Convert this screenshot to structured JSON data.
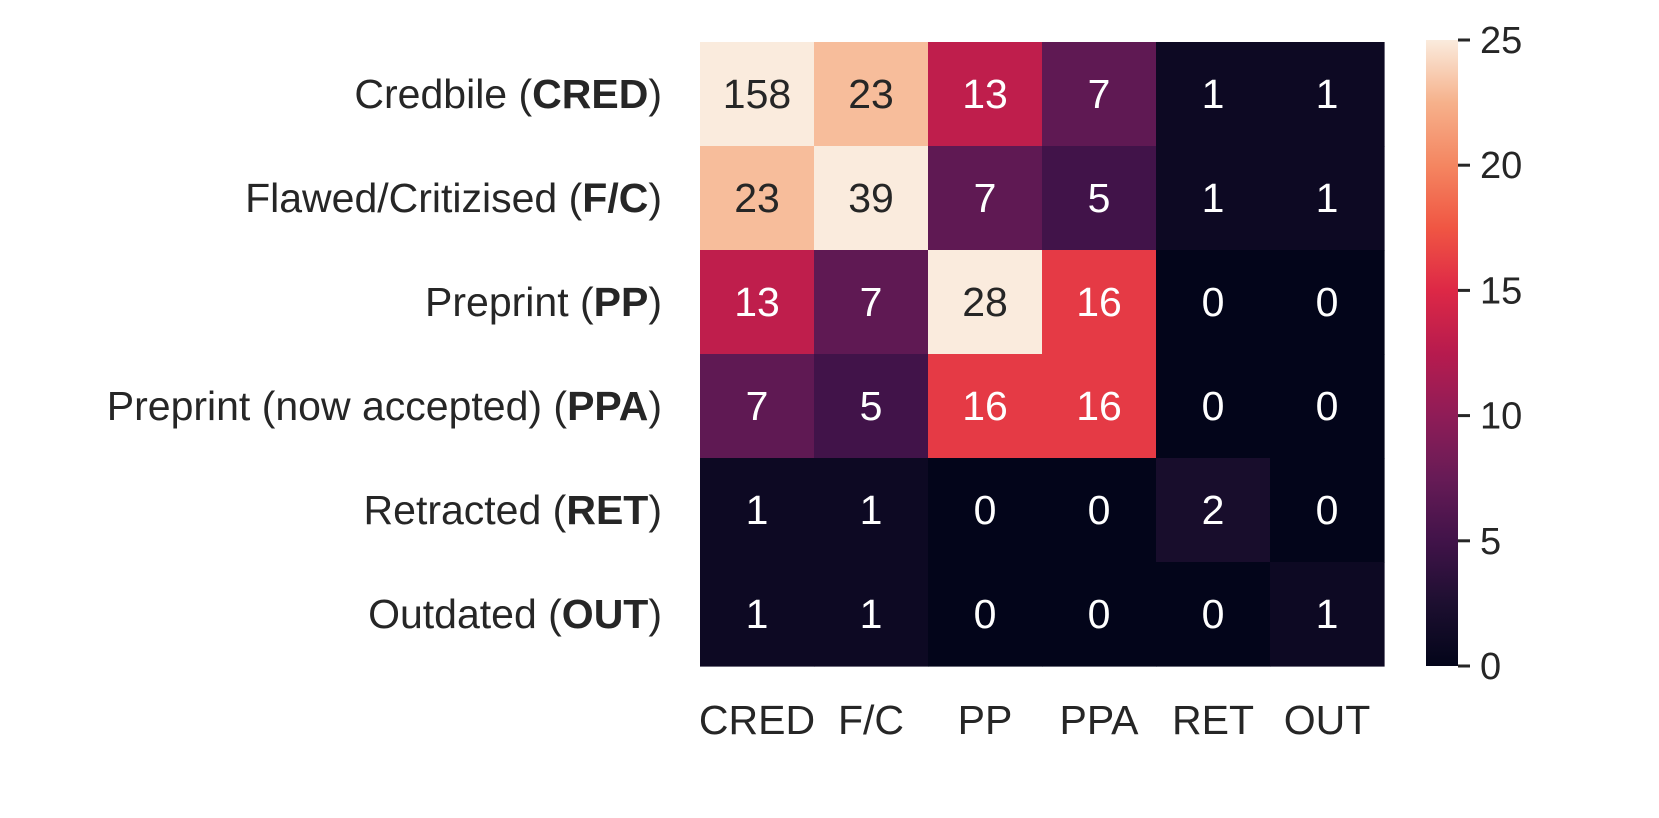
{
  "chart_data": {
    "type": "heatmap",
    "rows": [
      {
        "name": "Credbile",
        "abbr": "CRED"
      },
      {
        "name": "Flawed/Critizised",
        "abbr": "F/C"
      },
      {
        "name": "Preprint",
        "abbr": "PP"
      },
      {
        "name": "Preprint (now accepted)",
        "abbr": "PPA"
      },
      {
        "name": "Retracted",
        "abbr": "RET"
      },
      {
        "name": "Outdated",
        "abbr": "OUT"
      }
    ],
    "columns": [
      "CRED",
      "F/C",
      "PP",
      "PPA",
      "RET",
      "OUT"
    ],
    "values": [
      [
        158,
        23,
        13,
        7,
        1,
        1
      ],
      [
        23,
        39,
        7,
        5,
        1,
        1
      ],
      [
        13,
        7,
        28,
        16,
        0,
        0
      ],
      [
        7,
        5,
        16,
        16,
        0,
        0
      ],
      [
        1,
        1,
        0,
        0,
        2,
        0
      ],
      [
        1,
        1,
        0,
        0,
        0,
        1
      ]
    ],
    "colorbar": {
      "range": [
        0,
        25
      ],
      "ticks": [
        0,
        5,
        10,
        15,
        20,
        25
      ],
      "colormap": "rocket"
    },
    "title": "",
    "xlabel": "",
    "ylabel": ""
  }
}
